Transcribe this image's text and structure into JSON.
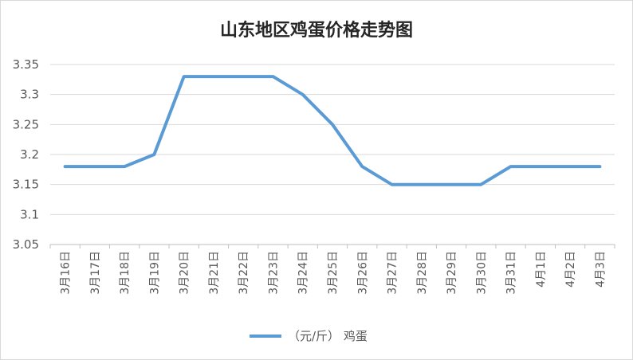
{
  "chart_data": {
    "type": "line",
    "title": "山东地区鸡蛋价格走势图",
    "categories": [
      "3月16日",
      "3月17日",
      "3月18日",
      "3月19日",
      "3月20日",
      "3月21日",
      "3月22日",
      "3月23日",
      "3月24日",
      "3月25日",
      "3月26日",
      "3月27日",
      "3月28日",
      "3月29日",
      "3月30日",
      "3月31日",
      "4月1日",
      "4月2日",
      "4月3日"
    ],
    "series": [
      {
        "name": "（元/斤） 鸡蛋",
        "values": [
          3.18,
          3.18,
          3.18,
          3.2,
          3.33,
          3.33,
          3.33,
          3.33,
          3.3,
          3.25,
          3.18,
          3.15,
          3.15,
          3.15,
          3.15,
          3.18,
          3.18,
          3.18,
          3.18
        ]
      }
    ],
    "ylim": [
      3.05,
      3.35
    ],
    "yticks": [
      "3.05",
      "3.1",
      "3.15",
      "3.2",
      "3.25",
      "3.3",
      "3.35"
    ],
    "grid": true,
    "legend_position": "bottom",
    "colors": {
      "series": "#5b9bd5"
    }
  }
}
